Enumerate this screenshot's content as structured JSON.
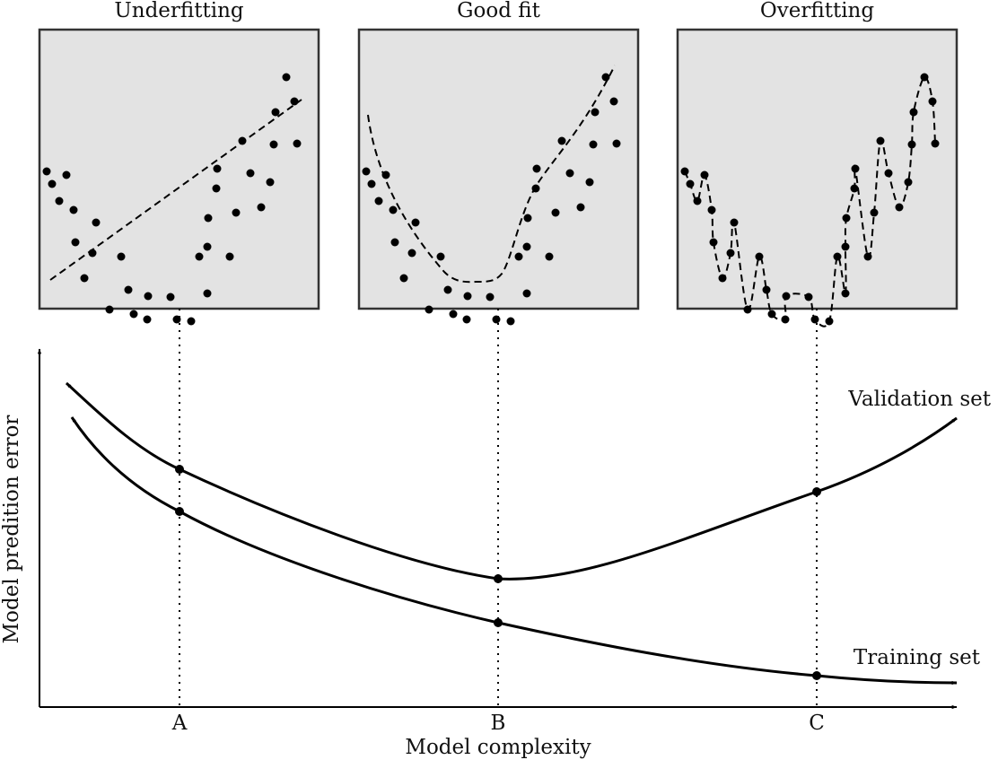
{
  "panels": [
    {
      "title": "Underfitting",
      "fit": "linear"
    },
    {
      "title": "Good fit",
      "fit": "smooth"
    },
    {
      "title": "Overfitting",
      "fit": "interpolating"
    }
  ],
  "panel_points": [
    [
      8,
      158
    ],
    [
      14,
      172
    ],
    [
      30,
      162
    ],
    [
      22,
      191
    ],
    [
      38,
      201
    ],
    [
      63,
      215
    ],
    [
      40,
      237
    ],
    [
      59,
      249
    ],
    [
      50,
      277
    ],
    [
      91,
      253
    ],
    [
      78,
      312
    ],
    [
      99,
      290
    ],
    [
      105,
      317
    ],
    [
      121,
      297
    ],
    [
      120,
      323
    ],
    [
      146,
      298
    ],
    [
      153,
      323
    ],
    [
      169,
      325
    ],
    [
      187,
      294
    ],
    [
      178,
      253
    ],
    [
      188,
      210
    ],
    [
      197,
      177
    ],
    [
      187,
      242
    ],
    [
      212,
      253
    ],
    [
      198,
      155
    ],
    [
      219,
      204
    ],
    [
      235,
      160
    ],
    [
      226,
      124
    ],
    [
      247,
      198
    ],
    [
      257,
      170
    ],
    [
      263,
      92
    ],
    [
      261,
      128
    ],
    [
      275,
      53
    ],
    [
      284,
      80
    ],
    [
      287,
      127
    ]
  ],
  "axes": {
    "x_label": "Model complexity",
    "y_label": "Model predition error",
    "ticks": [
      "A",
      "B",
      "C"
    ]
  },
  "curves": {
    "validation_label": "Validation set",
    "training_label": "Training set"
  },
  "colors": {
    "panel_fill": "#e3e3e3",
    "panel_border": "#333333",
    "ink": "#000000"
  }
}
